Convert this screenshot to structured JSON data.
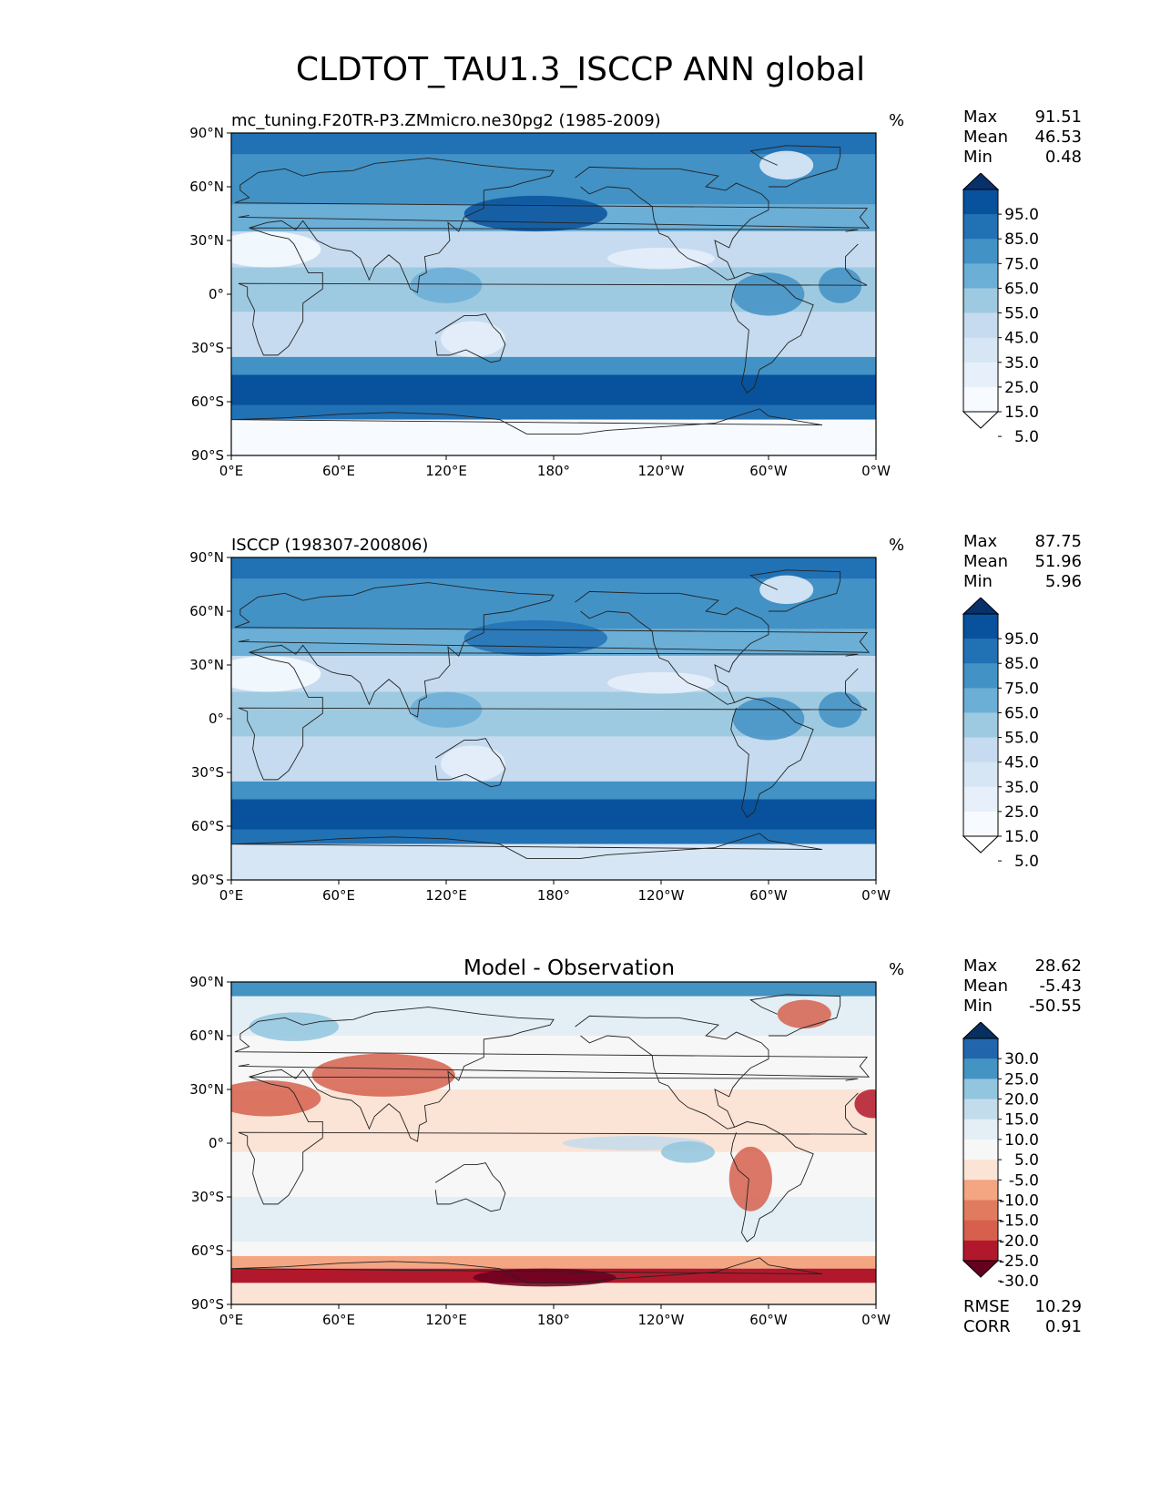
{
  "figure": {
    "title": "CLDTOT_TAU1.3_ISCCP ANN global"
  },
  "axes": {
    "lat_ticks": [
      "90°N",
      "60°N",
      "30°N",
      "0°",
      "30°S",
      "60°S",
      "90°S"
    ],
    "lon_ticks": [
      "0°E",
      "60°E",
      "120°E",
      "180°",
      "120°W",
      "60°W",
      "0°W"
    ]
  },
  "panels": [
    {
      "title_left": "mc_tuning.F20TR-P3.ZMmicro.ne30pg2 (1985-2009)",
      "title_center": "",
      "unit": "%",
      "stats": [
        {
          "label": "Max",
          "value": "91.51"
        },
        {
          "label": "Mean",
          "value": "46.53"
        },
        {
          "label": "Min",
          "value": "0.48"
        }
      ],
      "colorbar": {
        "labels": [
          "95.0",
          "85.0",
          "75.0",
          "65.0",
          "55.0",
          "45.0",
          "35.0",
          "25.0",
          "15.0",
          "5.0"
        ],
        "colors": [
          "#08306b",
          "#08519c",
          "#2171b5",
          "#4292c6",
          "#6baed6",
          "#9ecae1",
          "#c6dbef",
          "#d6e6f4",
          "#e7f0fa",
          "#f7fbff",
          "#ffffff"
        ]
      },
      "footer": []
    },
    {
      "title_left": "ISCCP (198307-200806)",
      "title_center": "",
      "unit": "%",
      "stats": [
        {
          "label": "Max",
          "value": "87.75"
        },
        {
          "label": "Mean",
          "value": "51.96"
        },
        {
          "label": "Min",
          "value": "5.96"
        }
      ],
      "colorbar": {
        "labels": [
          "95.0",
          "85.0",
          "75.0",
          "65.0",
          "55.0",
          "45.0",
          "35.0",
          "25.0",
          "15.0",
          "5.0"
        ],
        "colors": [
          "#08306b",
          "#08519c",
          "#2171b5",
          "#4292c6",
          "#6baed6",
          "#9ecae1",
          "#c6dbef",
          "#d6e6f4",
          "#e7f0fa",
          "#f7fbff",
          "#ffffff"
        ]
      },
      "footer": []
    },
    {
      "title_left": "",
      "title_center": "Model - Observation",
      "unit": "%",
      "stats": [
        {
          "label": "Max",
          "value": "28.62"
        },
        {
          "label": "Mean",
          "value": "-5.43"
        },
        {
          "label": "Min",
          "value": "-50.55"
        }
      ],
      "colorbar": {
        "labels": [
          "30.0",
          "25.0",
          "20.0",
          "15.0",
          "10.0",
          "5.0",
          "-5.0",
          "-10.0",
          "-15.0",
          "-20.0",
          "-25.0",
          "-30.0"
        ],
        "colors": [
          "#053061",
          "#2166ac",
          "#4393c3",
          "#92c5de",
          "#c3dcec",
          "#e3eef5",
          "#f7f7f7",
          "#fbe3d6",
          "#f4a582",
          "#e07b5f",
          "#d6604d",
          "#b2182b",
          "#67001f"
        ]
      },
      "footer": [
        {
          "label": "RMSE",
          "value": "10.29"
        },
        {
          "label": "CORR",
          "value": "0.91"
        }
      ]
    }
  ]
}
